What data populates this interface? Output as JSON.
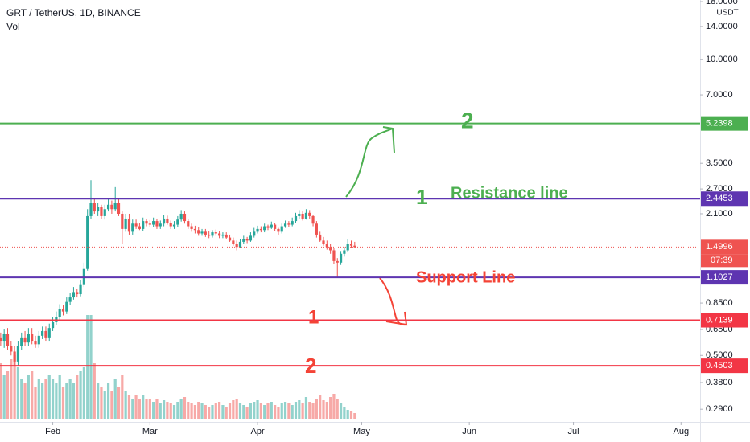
{
  "chart_data": {
    "type": "candlestick",
    "title": "GRT / TetherUS, 1D, BINANCE",
    "indicator": "Vol",
    "currency": "USDT",
    "up_color": "#26a69a",
    "down_color": "#ef5350",
    "log_scale": true,
    "ylim": [
      0.255,
      18.3
    ],
    "yticks": [
      {
        "value": 18,
        "label": "18.0000"
      },
      {
        "value": 14,
        "label": "14.0000"
      },
      {
        "value": 10,
        "label": "10.0000"
      },
      {
        "value": 7,
        "label": "7.0000"
      },
      {
        "value": 3.5,
        "label": "3.5000"
      },
      {
        "value": 2.7,
        "label": "2.7000"
      },
      {
        "value": 2.1,
        "label": "2.1000"
      },
      {
        "value": 0.85,
        "label": "0.8500"
      },
      {
        "value": 0.65,
        "label": "0.6500"
      },
      {
        "value": 0.5,
        "label": "0.5000"
      },
      {
        "value": 0.38,
        "label": "0.3800"
      },
      {
        "value": 0.29,
        "label": "0.2900"
      }
    ],
    "xlim": [
      16.8,
      218.5
    ],
    "xticks": [
      {
        "value": 32,
        "label": "Feb"
      },
      {
        "value": 60,
        "label": "Mar"
      },
      {
        "value": 91,
        "label": "Apr"
      },
      {
        "value": 121,
        "label": "May"
      },
      {
        "value": 152,
        "label": "Jun"
      },
      {
        "value": 182,
        "label": "Jul"
      },
      {
        "value": 213,
        "label": "Aug"
      }
    ],
    "x": [
      17,
      18,
      19,
      20,
      21,
      22,
      23,
      24,
      25,
      26,
      27,
      28,
      29,
      30,
      31,
      32,
      33,
      34,
      35,
      36,
      37,
      38,
      39,
      40,
      41,
      42,
      43,
      44,
      45,
      46,
      47,
      48,
      49,
      50,
      51,
      52,
      53,
      54,
      55,
      56,
      57,
      58,
      59,
      60,
      61,
      62,
      63,
      64,
      65,
      66,
      67,
      68,
      69,
      70,
      71,
      72,
      73,
      74,
      75,
      76,
      77,
      78,
      79,
      80,
      81,
      82,
      83,
      84,
      85,
      86,
      87,
      88,
      89,
      90,
      91,
      92,
      93,
      94,
      95,
      96,
      97,
      98,
      99,
      100,
      101,
      102,
      103,
      104,
      105,
      106,
      107,
      108,
      109,
      110,
      111,
      112,
      113,
      114,
      115,
      116,
      117,
      118,
      119
    ],
    "open": [
      0.6,
      0.58,
      0.62,
      0.55,
      0.52,
      0.47,
      0.55,
      0.6,
      0.57,
      0.62,
      0.58,
      0.56,
      0.61,
      0.64,
      0.6,
      0.66,
      0.7,
      0.74,
      0.8,
      0.78,
      0.86,
      0.9,
      0.95,
      0.93,
      1.02,
      1.2,
      2.05,
      2.35,
      2.15,
      2.25,
      2.05,
      2.2,
      2.3,
      2.2,
      2.35,
      2.1,
      1.8,
      2.0,
      1.75,
      1.9,
      1.85,
      1.8,
      1.95,
      1.9,
      1.88,
      1.95,
      1.85,
      1.9,
      2.0,
      1.92,
      1.85,
      1.88,
      1.98,
      2.1,
      1.95,
      1.85,
      1.8,
      1.78,
      1.72,
      1.75,
      1.7,
      1.68,
      1.74,
      1.72,
      1.68,
      1.7,
      1.65,
      1.6,
      1.55,
      1.5,
      1.58,
      1.62,
      1.6,
      1.68,
      1.75,
      1.8,
      1.78,
      1.85,
      1.82,
      1.88,
      1.8,
      1.75,
      1.85,
      1.9,
      1.88,
      1.95,
      2.05,
      2.1,
      2.0,
      2.12,
      2.05,
      1.9,
      1.7,
      1.6,
      1.55,
      1.5,
      1.45,
      1.3,
      1.28,
      1.4,
      1.45,
      1.55,
      1.52
    ],
    "high": [
      0.63,
      0.65,
      0.66,
      0.58,
      0.55,
      0.58,
      0.63,
      0.64,
      0.66,
      0.66,
      0.61,
      0.64,
      0.67,
      0.67,
      0.69,
      0.74,
      0.78,
      0.84,
      0.83,
      0.9,
      0.94,
      1.0,
      0.98,
      1.07,
      1.28,
      2.2,
      2.95,
      2.45,
      2.35,
      2.3,
      2.3,
      2.45,
      2.4,
      2.75,
      2.45,
      2.15,
      2.1,
      2.1,
      1.98,
      1.98,
      1.92,
      2.02,
      2.0,
      1.97,
      2.02,
      2.0,
      1.96,
      2.08,
      2.06,
      1.96,
      1.95,
      2.05,
      2.18,
      2.15,
      2.0,
      1.9,
      1.86,
      1.84,
      1.8,
      1.8,
      1.76,
      1.78,
      1.79,
      1.76,
      1.74,
      1.74,
      1.7,
      1.65,
      1.6,
      1.63,
      1.68,
      1.66,
      1.74,
      1.82,
      1.86,
      1.85,
      1.9,
      1.88,
      1.94,
      1.92,
      1.82,
      1.9,
      1.96,
      1.95,
      2.02,
      2.12,
      2.18,
      2.15,
      2.2,
      2.18,
      2.08,
      1.95,
      1.75,
      1.66,
      1.6,
      1.55,
      1.48,
      1.34,
      1.44,
      1.5,
      1.62,
      1.6,
      1.58
    ],
    "low": [
      0.55,
      0.54,
      0.53,
      0.5,
      0.45,
      0.45,
      0.53,
      0.55,
      0.55,
      0.56,
      0.54,
      0.54,
      0.59,
      0.58,
      0.58,
      0.64,
      0.68,
      0.72,
      0.75,
      0.76,
      0.83,
      0.88,
      0.9,
      0.91,
      1.0,
      1.18,
      2.0,
      2.1,
      2.05,
      2.0,
      1.98,
      2.15,
      2.1,
      2.15,
      2.05,
      1.55,
      1.75,
      1.7,
      1.7,
      1.8,
      1.78,
      1.76,
      1.85,
      1.84,
      1.84,
      1.8,
      1.8,
      1.85,
      1.88,
      1.8,
      1.8,
      1.84,
      1.94,
      1.9,
      1.8,
      1.75,
      1.72,
      1.68,
      1.68,
      1.66,
      1.64,
      1.65,
      1.68,
      1.64,
      1.64,
      1.62,
      1.58,
      1.52,
      1.45,
      1.48,
      1.55,
      1.56,
      1.58,
      1.65,
      1.72,
      1.74,
      1.74,
      1.78,
      1.8,
      1.76,
      1.7,
      1.72,
      1.82,
      1.84,
      1.85,
      1.92,
      2.0,
      1.96,
      1.98,
      2.0,
      1.85,
      1.65,
      1.58,
      1.52,
      1.46,
      1.4,
      1.26,
      1.1,
      1.25,
      1.36,
      1.42,
      1.48,
      1.48
    ],
    "close": [
      0.58,
      0.62,
      0.55,
      0.52,
      0.47,
      0.55,
      0.6,
      0.57,
      0.62,
      0.58,
      0.56,
      0.61,
      0.64,
      0.6,
      0.66,
      0.7,
      0.74,
      0.8,
      0.78,
      0.86,
      0.9,
      0.95,
      0.93,
      1.02,
      1.2,
      2.05,
      2.35,
      2.15,
      2.25,
      2.05,
      2.2,
      2.3,
      2.2,
      2.35,
      2.1,
      1.8,
      2.0,
      1.75,
      1.9,
      1.85,
      1.8,
      1.95,
      1.9,
      1.88,
      1.95,
      1.85,
      1.9,
      2.0,
      1.92,
      1.85,
      1.88,
      1.98,
      2.1,
      1.95,
      1.85,
      1.8,
      1.78,
      1.72,
      1.75,
      1.7,
      1.68,
      1.74,
      1.72,
      1.68,
      1.7,
      1.65,
      1.6,
      1.55,
      1.5,
      1.58,
      1.62,
      1.6,
      1.68,
      1.75,
      1.8,
      1.78,
      1.85,
      1.82,
      1.88,
      1.8,
      1.75,
      1.85,
      1.9,
      1.88,
      1.95,
      2.05,
      2.1,
      2.0,
      2.12,
      2.05,
      1.9,
      1.7,
      1.6,
      1.55,
      1.5,
      1.45,
      1.3,
      1.28,
      1.4,
      1.45,
      1.55,
      1.52,
      1.4996
    ],
    "volume": [
      70,
      55,
      60,
      75,
      80,
      65,
      50,
      45,
      55,
      60,
      40,
      50,
      45,
      50,
      55,
      50,
      45,
      55,
      40,
      45,
      50,
      45,
      55,
      60,
      65,
      130,
      130,
      70,
      45,
      40,
      35,
      45,
      35,
      50,
      40,
      55,
      35,
      30,
      25,
      30,
      25,
      30,
      25,
      25,
      22,
      25,
      20,
      24,
      22,
      20,
      18,
      22,
      25,
      28,
      22,
      20,
      18,
      22,
      20,
      18,
      16,
      18,
      20,
      22,
      18,
      16,
      20,
      24,
      26,
      20,
      18,
      16,
      20,
      22,
      24,
      20,
      18,
      20,
      22,
      18,
      16,
      20,
      22,
      20,
      18,
      22,
      24,
      20,
      28,
      22,
      20,
      26,
      30,
      24,
      22,
      28,
      32,
      26,
      20,
      16,
      12,
      10,
      8
    ],
    "levels": [
      {
        "value": 5.2398,
        "color": "#4caf50"
      },
      {
        "value": 2.4453,
        "color": "#5e35b1"
      },
      {
        "value": 1.1027,
        "color": "#5e35b1"
      },
      {
        "value": 0.7139,
        "color": "#f23645"
      },
      {
        "value": 0.4503,
        "color": "#f23645"
      }
    ],
    "last_price": 1.4996,
    "countdown": "07:39",
    "annotations": [
      {
        "text": "2",
        "color": "#4caf50"
      },
      {
        "text": "1",
        "color": "#4caf50"
      },
      {
        "text": "Resistance line",
        "color": "#4caf50"
      },
      {
        "text": "Support Line",
        "color": "#f44336"
      },
      {
        "text": "1",
        "color": "#f44336"
      },
      {
        "text": "2",
        "color": "#f44336"
      }
    ]
  }
}
